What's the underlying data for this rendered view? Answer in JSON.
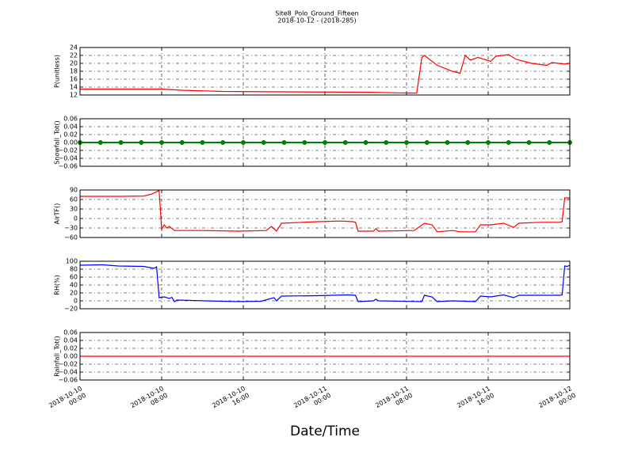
{
  "title": "Site8_Polo_Ground_Fifteen",
  "subtitle": "2018-10-12 - (2018-285)",
  "xlabel": "Date/Time",
  "xlim": [
    "2018-10-10 00:00",
    "2018-10-12 00:00"
  ],
  "xticks": [
    {
      "value": "2018-10-10 00:00",
      "label": "2018-10-10\n00:00"
    },
    {
      "value": "2018-10-10 08:00",
      "label": "2018-10-10\n08:00"
    },
    {
      "value": "2018-10-10 16:00",
      "label": "2018-10-10\n16:00"
    },
    {
      "value": "2018-10-11 00:00",
      "label": "2018-10-11\n00:00"
    },
    {
      "value": "2018-10-11 08:00",
      "label": "2018-10-11\n08:00"
    },
    {
      "value": "2018-10-11 16:00",
      "label": "2018-10-11\n16:00"
    },
    {
      "value": "2018-10-12 00:00",
      "label": "2018-10-12\n00:00"
    }
  ],
  "chart_data": [
    {
      "type": "line",
      "ylabel": "P(unitless)",
      "color": "#ff0000",
      "grid": true,
      "ylim": [
        12,
        24
      ],
      "yticks": [
        12,
        14,
        16,
        18,
        20,
        22,
        24
      ],
      "x": [
        "2018-10-10 00:00",
        "2018-10-10 04:00",
        "2018-10-10 08:00",
        "2018-10-10 10:00",
        "2018-10-10 14:00",
        "2018-10-10 20:00",
        "2018-10-11 04:00",
        "2018-10-11 08:00",
        "2018-10-11 09:00",
        "2018-10-11 09:30",
        "2018-10-11 09:45",
        "2018-10-11 11:00",
        "2018-10-11 12:30",
        "2018-10-11 13:15",
        "2018-10-11 13:45",
        "2018-10-11 14:15",
        "2018-10-11 15:00",
        "2018-10-11 16:15",
        "2018-10-11 16:45",
        "2018-10-11 18:00",
        "2018-10-11 18:45",
        "2018-10-11 20:15",
        "2018-10-11 21:45",
        "2018-10-11 22:15",
        "2018-10-11 23:30",
        "2018-10-12 00:00"
      ],
      "values": [
        13.5,
        13.5,
        13.5,
        13.2,
        12.9,
        12.8,
        12.7,
        12.5,
        12.5,
        21.5,
        22,
        19.5,
        18,
        17.5,
        22,
        20.8,
        21.5,
        20.5,
        21.8,
        22.2,
        21,
        20,
        19.5,
        20.2,
        19.8,
        20
      ]
    },
    {
      "type": "line",
      "ylabel": "Snowfall_Tot()",
      "color": "#008000",
      "marker": true,
      "grid": true,
      "ylim": [
        -0.06,
        0.06
      ],
      "yticks": [
        {
          "value": -0.06,
          "label": "−0.06"
        },
        {
          "value": -0.04,
          "label": "−0.04"
        },
        {
          "value": -0.02,
          "label": "−0.02"
        },
        {
          "value": 0,
          "label": "0.00"
        },
        0.02,
        0.04,
        0.06
      ],
      "x": [
        "2018-10-10 00:00",
        "2018-10-10 02:00",
        "2018-10-10 04:00",
        "2018-10-10 06:00",
        "2018-10-10 08:00",
        "2018-10-10 10:00",
        "2018-10-10 12:00",
        "2018-10-10 14:00",
        "2018-10-10 16:00",
        "2018-10-10 18:00",
        "2018-10-10 20:00",
        "2018-10-10 22:00",
        "2018-10-11 00:00",
        "2018-10-11 02:00",
        "2018-10-11 04:00",
        "2018-10-11 06:00",
        "2018-10-11 08:00",
        "2018-10-11 10:00",
        "2018-10-11 12:00",
        "2018-10-11 14:00",
        "2018-10-11 16:00",
        "2018-10-11 18:00",
        "2018-10-11 20:00",
        "2018-10-11 22:00",
        "2018-10-12 00:00"
      ],
      "values": [
        0,
        0,
        0,
        0,
        0,
        0,
        0,
        0,
        0,
        0,
        0,
        0,
        0,
        0,
        0,
        0,
        0,
        0,
        0,
        0,
        0,
        0,
        0,
        0,
        0
      ]
    },
    {
      "type": "line",
      "ylabel": "AirTF()",
      "color": "#ff0000",
      "grid": true,
      "ylim": [
        -60,
        90
      ],
      "yticks": [
        {
          "value": -60,
          "label": "−60"
        },
        {
          "value": -30,
          "label": "−30"
        },
        0,
        30,
        60,
        90
      ],
      "x": [
        "2018-10-10 00:00",
        "2018-10-10 04:00",
        "2018-10-10 06:15",
        "2018-10-10 07:00",
        "2018-10-10 07:45",
        "2018-10-10 08:00",
        "2018-10-10 08:15",
        "2018-10-10 08:30",
        "2018-10-10 08:45",
        "2018-10-10 09:15",
        "2018-10-10 12:00",
        "2018-10-10 15:30",
        "2018-10-10 18:15",
        "2018-10-10 18:45",
        "2018-10-10 19:15",
        "2018-10-10 19:45",
        "2018-10-10 23:15",
        "2018-10-11 01:30",
        "2018-10-11 02:45",
        "2018-10-11 03:00",
        "2018-10-11 03:15",
        "2018-10-11 04:45",
        "2018-10-11 05:00",
        "2018-10-11 05:15",
        "2018-10-11 08:45",
        "2018-10-11 09:45",
        "2018-10-11 10:30",
        "2018-10-11 11:00",
        "2018-10-11 12:30",
        "2018-10-11 13:15",
        "2018-10-11 14:45",
        "2018-10-11 15:15",
        "2018-10-11 16:15",
        "2018-10-11 17:30",
        "2018-10-11 18:30",
        "2018-10-11 19:00",
        "2018-10-11 21:00",
        "2018-10-11 23:00",
        "2018-10-11 23:15",
        "2018-10-11 23:30",
        "2018-10-12 00:00"
      ],
      "values": [
        70,
        70,
        71,
        77,
        88,
        -35,
        -20,
        -30,
        -25,
        -38,
        -38,
        -40,
        -38,
        -25,
        -40,
        -15,
        -10,
        -8,
        -10,
        -12,
        -40,
        -40,
        -32,
        -40,
        -38,
        -15,
        -20,
        -42,
        -38,
        -42,
        -42,
        -20,
        -20,
        -15,
        -28,
        -15,
        -12,
        -12,
        -10,
        65,
        65
      ]
    },
    {
      "type": "line",
      "ylabel": "RH(%)",
      "color": "#0000ff",
      "grid": true,
      "ylim": [
        -20,
        100
      ],
      "yticks": [
        {
          "value": -20,
          "label": "−20"
        },
        0,
        20,
        40,
        60,
        80,
        100
      ],
      "x": [
        "2018-10-10 00:00",
        "2018-10-10 02:15",
        "2018-10-10 03:45",
        "2018-10-10 06:15",
        "2018-10-10 07:15",
        "2018-10-10 07:30",
        "2018-10-10 07:45",
        "2018-10-10 08:15",
        "2018-10-10 08:45",
        "2018-10-10 09:00",
        "2018-10-10 09:15",
        "2018-10-10 09:30",
        "2018-10-10 12:15",
        "2018-10-10 15:30",
        "2018-10-10 17:45",
        "2018-10-10 19:00",
        "2018-10-10 19:15",
        "2018-10-10 19:45",
        "2018-10-10 23:15",
        "2018-10-11 02:15",
        "2018-10-11 03:00",
        "2018-10-11 03:15",
        "2018-10-11 04:45",
        "2018-10-11 05:00",
        "2018-10-11 05:15",
        "2018-10-11 09:30",
        "2018-10-11 09:45",
        "2018-10-11 10:30",
        "2018-10-11 11:00",
        "2018-10-11 12:30",
        "2018-10-11 14:45",
        "2018-10-11 15:15",
        "2018-10-11 16:15",
        "2018-10-11 17:30",
        "2018-10-11 18:30",
        "2018-10-11 19:00",
        "2018-10-11 23:00",
        "2018-10-11 23:15",
        "2018-10-11 23:30",
        "2018-10-11 23:45",
        "2018-10-12 00:00"
      ],
      "values": [
        90,
        91,
        88,
        87,
        82,
        86,
        8,
        10,
        6,
        9,
        -2,
        2,
        0,
        -2,
        -1,
        8,
        0,
        12,
        13,
        15,
        14,
        -2,
        0,
        4,
        0,
        -2,
        14,
        10,
        -2,
        0,
        -2,
        12,
        10,
        15,
        8,
        14,
        14,
        15,
        88,
        87,
        90
      ]
    },
    {
      "type": "line",
      "ylabel": "Rainfall_Tot()",
      "color": "#ff0000",
      "grid": true,
      "ylim": [
        -0.06,
        0.06
      ],
      "yticks": [
        {
          "value": -0.06,
          "label": "−0.06"
        },
        {
          "value": -0.04,
          "label": "−0.04"
        },
        {
          "value": -0.02,
          "label": "−0.02"
        },
        {
          "value": 0,
          "label": "0.00"
        },
        0.02,
        0.04,
        0.06
      ],
      "x": [
        "2018-10-10 00:00",
        "2018-10-10 04:00",
        "2018-10-10 08:00",
        "2018-10-10 12:00",
        "2018-10-10 16:00",
        "2018-10-10 20:00",
        "2018-10-11 00:00",
        "2018-10-11 04:00",
        "2018-10-11 08:00",
        "2018-10-11 12:00",
        "2018-10-11 16:00",
        "2018-10-11 20:00",
        "2018-10-12 00:00"
      ],
      "values": [
        0,
        0,
        0,
        0,
        0,
        0,
        0,
        0,
        0,
        0,
        0,
        0,
        0
      ]
    }
  ]
}
